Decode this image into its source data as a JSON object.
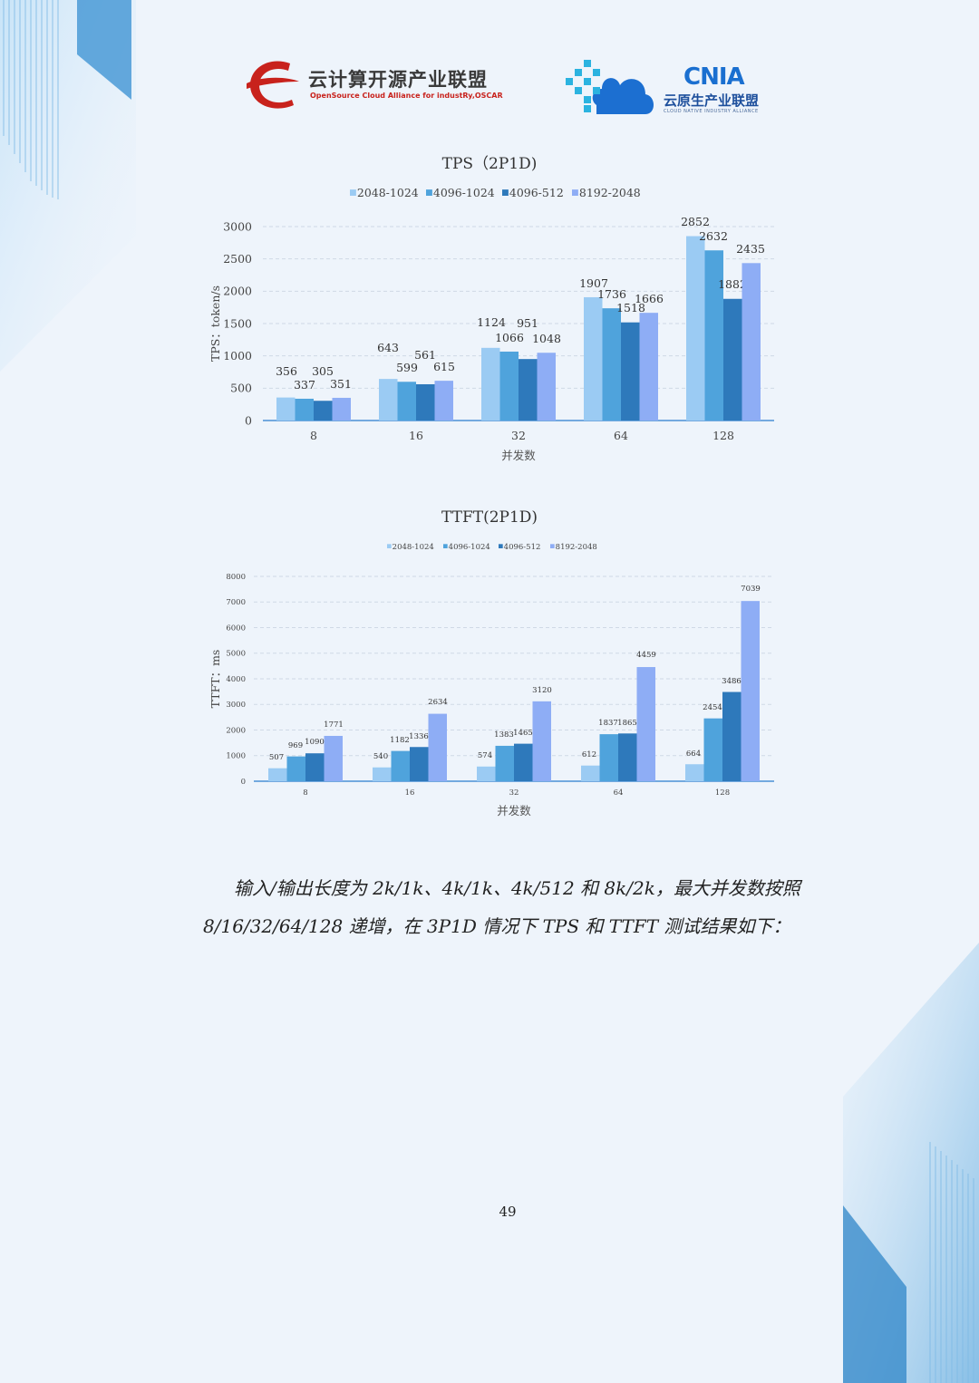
{
  "header": {
    "left_logo": {
      "name": "云计算开源产业联盟",
      "subtitle": "OpenSource Cloud Alliance for industRy,OSCAR"
    },
    "right_logo": {
      "name": "CNIA",
      "cn_name": "云原生产业联盟",
      "en_name": "CLOUD NATIVE INDUSTRY ALLIANCE"
    }
  },
  "colors": {
    "s1": "#9bcbf3",
    "s2": "#4fa3dc",
    "s3": "#2e79bb",
    "s4": "#8eadf5",
    "axis": "#4a90d6",
    "grid": "#cfd9e6"
  },
  "chart_data": [
    {
      "type": "bar",
      "title": "TPS（2P1D)",
      "xlabel": "并发数",
      "ylabel": "TPS：token/s",
      "ylim": [
        0,
        3000
      ],
      "yticks": [
        0,
        500,
        1000,
        1500,
        2000,
        2500,
        3000
      ],
      "categories": [
        "8",
        "16",
        "32",
        "64",
        "128"
      ],
      "grid": true,
      "legend": "top",
      "series": [
        {
          "name": "2048-1024",
          "values": [
            356,
            643,
            1124,
            1907,
            2852
          ]
        },
        {
          "name": "4096-1024",
          "values": [
            337,
            599,
            1066,
            1736,
            2632
          ]
        },
        {
          "name": "4096-512",
          "values": [
            305,
            561,
            951,
            1518,
            1882
          ]
        },
        {
          "name": "8192-2048",
          "values": [
            351,
            615,
            1048,
            1666,
            2435
          ]
        }
      ]
    },
    {
      "type": "bar",
      "title": "TTFT(2P1D)",
      "xlabel": "并发数",
      "ylabel": "TTFT：ms",
      "ylim": [
        0,
        8000
      ],
      "yticks": [
        0,
        1000,
        2000,
        3000,
        4000,
        5000,
        6000,
        7000,
        8000
      ],
      "categories": [
        "8",
        "16",
        "32",
        "64",
        "128"
      ],
      "grid": true,
      "legend": "top",
      "series": [
        {
          "name": "2048-1024",
          "values": [
            507,
            540,
            574,
            612,
            664
          ]
        },
        {
          "name": "4096-1024",
          "values": [
            969,
            1182,
            1383,
            1837,
            2454
          ]
        },
        {
          "name": "4096-512",
          "values": [
            1090,
            1336,
            1465,
            1865,
            3486
          ]
        },
        {
          "name": "8192-2048",
          "values": [
            1771,
            2634,
            3120,
            4459,
            7039
          ]
        }
      ]
    }
  ],
  "body_text": {
    "line1": "输入/输出长度为 2k/1k、4k/1k、4k/512 和 8k/2k，最大并发数按照",
    "line2": "8/16/32/64/128 递增，在 3P1D 情况下 TPS 和 TTFT 测试结果如下："
  },
  "page_number": "49"
}
